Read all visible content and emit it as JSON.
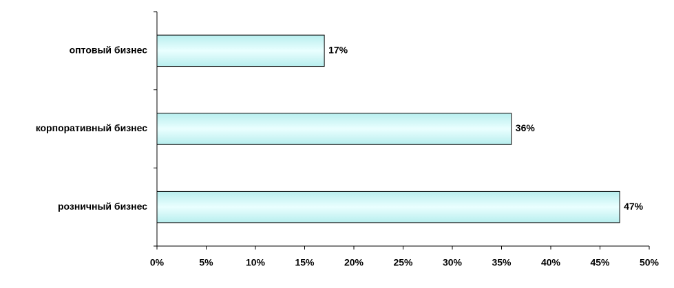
{
  "chart_data": {
    "type": "hbar",
    "categories": [
      "оптовый бизнес",
      "корпоративный бизнес",
      "розничный бизнес"
    ],
    "values": [
      17,
      36,
      47
    ],
    "value_labels": [
      "17%",
      "36%",
      "47%"
    ],
    "color": "#ccffff",
    "xlim": [
      0,
      50
    ],
    "xticks": [
      {
        "value": 0,
        "label": "0%"
      },
      {
        "value": 5,
        "label": "5%"
      },
      {
        "value": 10,
        "label": "10%"
      },
      {
        "value": 15,
        "label": "15%"
      },
      {
        "value": 20,
        "label": "20%"
      },
      {
        "value": 25,
        "label": "25%"
      },
      {
        "value": 30,
        "label": "30%"
      },
      {
        "value": 35,
        "label": "35%"
      },
      {
        "value": 40,
        "label": "40%"
      },
      {
        "value": 45,
        "label": "45%"
      },
      {
        "value": 50,
        "label": "50%"
      }
    ],
    "grid": false
  }
}
